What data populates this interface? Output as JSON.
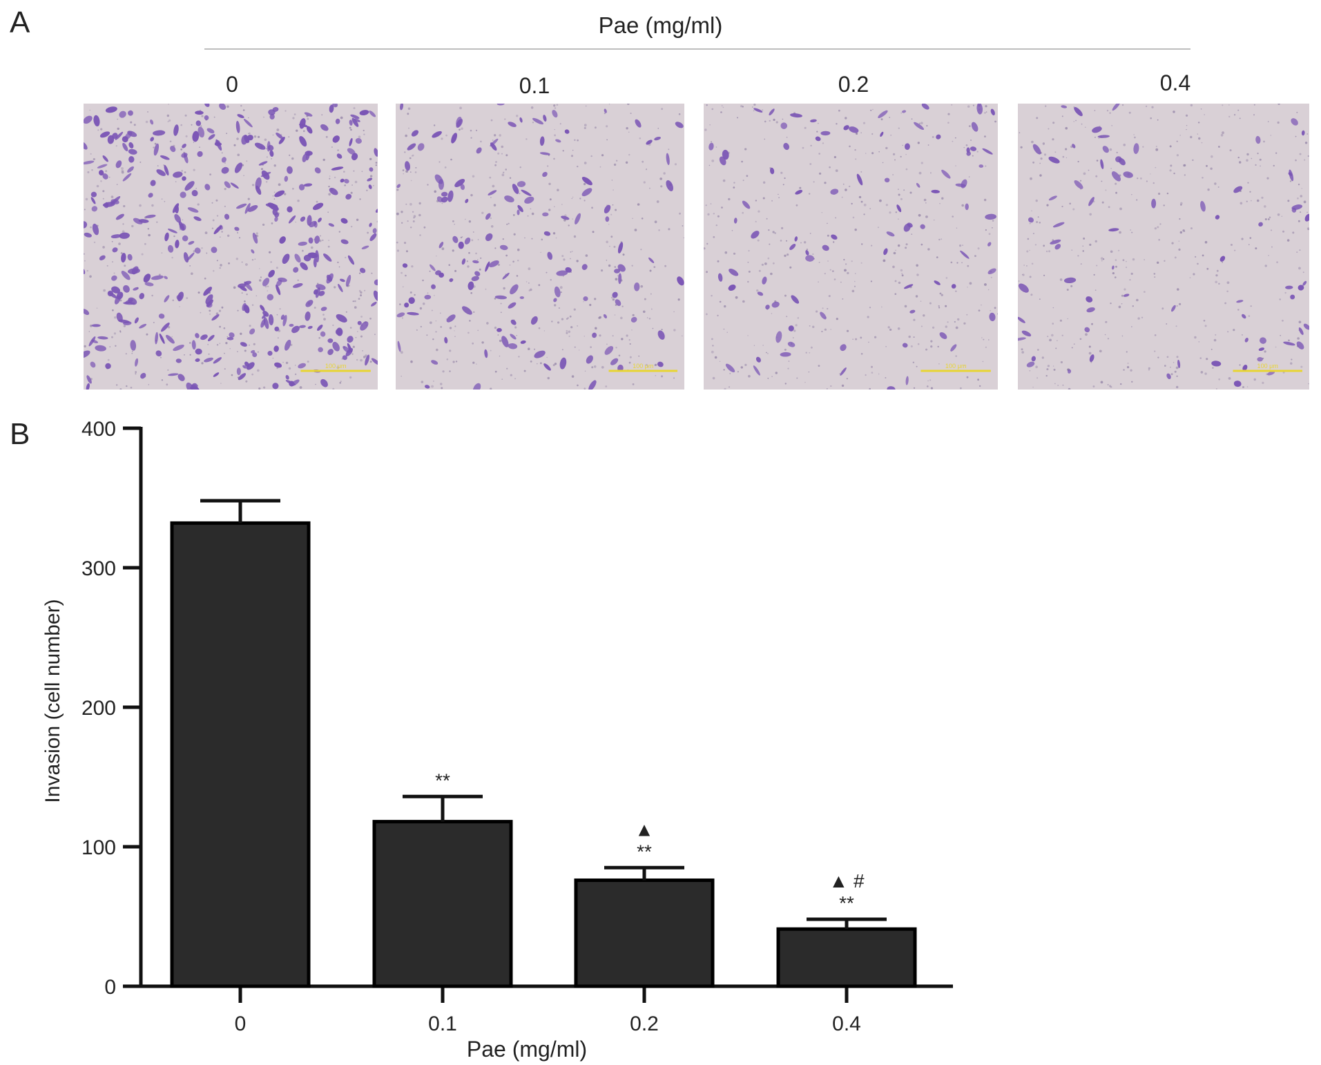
{
  "panels": {
    "a": "A",
    "b": "B"
  },
  "images": {
    "title": "Pae (mg/ml)",
    "labels": [
      "0",
      "0.1",
      "0.2",
      "0.4"
    ],
    "scale_text": "100 μm",
    "colors": {
      "background": "#d9d0d6",
      "cell": "#7a55b5",
      "scale_bar": "#e8d532"
    },
    "cell_density_relative": [
      1.0,
      0.36,
      0.24,
      0.2
    ]
  },
  "chart_data": {
    "type": "bar",
    "categories": [
      "0",
      "0.1",
      "0.2",
      "0.4"
    ],
    "values": [
      332,
      118,
      76,
      41
    ],
    "errors": [
      16,
      18,
      9,
      7
    ],
    "annotations": [
      {
        "category": "0.1",
        "lines": [
          "**"
        ]
      },
      {
        "category": "0.2",
        "lines": [
          "▲",
          "**"
        ]
      },
      {
        "category": "0.4",
        "lines": [
          "▲ #",
          "**"
        ]
      }
    ],
    "ylim": [
      0,
      400
    ],
    "yticks": [
      0,
      100,
      200,
      300,
      400
    ],
    "ylabel": "Invasion (cell number)",
    "xlabel": "Pae (mg/ml)",
    "bar_color": "#2b2b2b"
  }
}
